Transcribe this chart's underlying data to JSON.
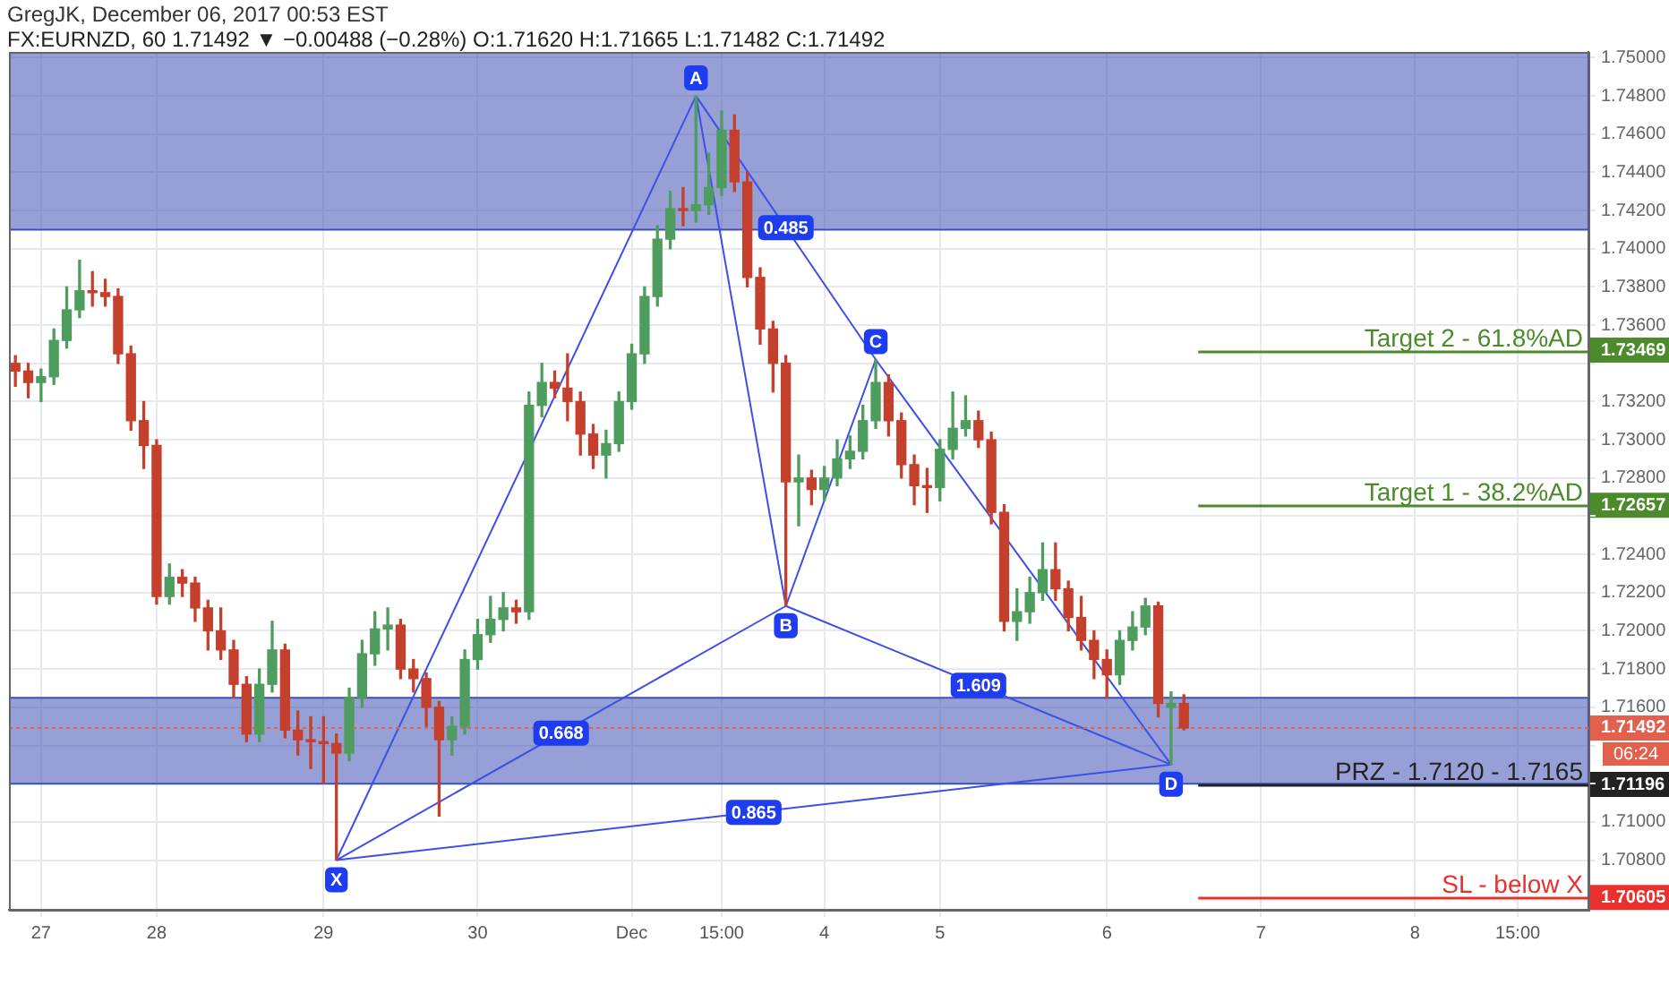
{
  "chart_data": {
    "type": "candlestick",
    "title": "FX:EURNZD, 60 1.71492 ▼ −0.00488 (−0.28%) O:1.71620 H:1.71665 L:1.71482 C:1.71492",
    "subtitle": "GregJK, December 06, 2017 00:53 EST",
    "categories": [
      null,
      null,
      "27",
      null,
      null,
      null,
      null,
      null,
      null,
      null,
      null,
      "28",
      null,
      null,
      null,
      null,
      null,
      null,
      null,
      null,
      null,
      null,
      null,
      null,
      "29",
      null,
      null,
      null,
      null,
      null,
      null,
      null,
      null,
      null,
      null,
      null,
      "30",
      null,
      null,
      null,
      null,
      null,
      null,
      null,
      null,
      null,
      null,
      null,
      "Dec",
      null,
      null,
      null,
      null,
      null,
      null,
      "15:00",
      null,
      null,
      null,
      null,
      null,
      null,
      null,
      "4",
      null,
      null,
      null,
      null,
      null,
      null,
      null,
      null,
      "5",
      null,
      null,
      null,
      null,
      null,
      null,
      null,
      null,
      null,
      null,
      null,
      null,
      "6",
      null,
      null,
      null,
      null,
      null,
      null,
      null,
      null,
      null,
      null,
      null,
      "7",
      null,
      null,
      null,
      null,
      null,
      null,
      null,
      null,
      null,
      null,
      null,
      "8",
      null,
      null,
      null,
      null,
      null,
      null,
      null,
      "15:00",
      null,
      null,
      null,
      null,
      null
    ],
    "ohlc": [
      [
        1.734,
        1.7344,
        1.7328,
        1.7336
      ],
      [
        1.7336,
        1.734,
        1.7322,
        1.733
      ],
      [
        1.733,
        1.7337,
        1.732,
        1.7333
      ],
      [
        1.7333,
        1.7358,
        1.7329,
        1.7352
      ],
      [
        1.7352,
        1.738,
        1.7348,
        1.7368
      ],
      [
        1.7368,
        1.7394,
        1.7364,
        1.7378
      ],
      [
        1.7378,
        1.7388,
        1.737,
        1.7377
      ],
      [
        1.7377,
        1.7384,
        1.737,
        1.7375
      ],
      [
        1.7375,
        1.7379,
        1.734,
        1.7345
      ],
      [
        1.7345,
        1.7349,
        1.7305,
        1.731
      ],
      [
        1.731,
        1.732,
        1.7285,
        1.7297
      ],
      [
        1.7297,
        1.73,
        1.7214,
        1.7218
      ],
      [
        1.7218,
        1.7235,
        1.7214,
        1.7228
      ],
      [
        1.7228,
        1.7232,
        1.7218,
        1.7225
      ],
      [
        1.7225,
        1.7228,
        1.7205,
        1.7212
      ],
      [
        1.7212,
        1.7216,
        1.719,
        1.72
      ],
      [
        1.72,
        1.7212,
        1.7185,
        1.719
      ],
      [
        1.719,
        1.7195,
        1.7165,
        1.7172
      ],
      [
        1.7172,
        1.7176,
        1.7142,
        1.7146
      ],
      [
        1.7146,
        1.718,
        1.7142,
        1.7172
      ],
      [
        1.7172,
        1.7205,
        1.7168,
        1.719
      ],
      [
        1.719,
        1.7193,
        1.7144,
        1.7148
      ],
      [
        1.7148,
        1.7158,
        1.7135,
        1.7143
      ],
      [
        1.7143,
        1.7155,
        1.7128,
        1.7142
      ],
      [
        1.7142,
        1.7155,
        1.712,
        1.7141
      ],
      [
        1.7141,
        1.7146,
        1.708,
        1.7136
      ],
      [
        1.7136,
        1.717,
        1.7132,
        1.7165
      ],
      [
        1.7165,
        1.7195,
        1.716,
        1.7188
      ],
      [
        1.7188,
        1.721,
        1.7182,
        1.7201
      ],
      [
        1.7201,
        1.7212,
        1.719,
        1.7203
      ],
      [
        1.7203,
        1.7206,
        1.7175,
        1.718
      ],
      [
        1.718,
        1.7185,
        1.7168,
        1.7175
      ],
      [
        1.7175,
        1.7178,
        1.715,
        1.716
      ],
      [
        1.716,
        1.7163,
        1.7103,
        1.7143
      ],
      [
        1.7143,
        1.7155,
        1.7135,
        1.715
      ],
      [
        1.715,
        1.719,
        1.7146,
        1.7185
      ],
      [
        1.7185,
        1.7206,
        1.718,
        1.7198
      ],
      [
        1.7198,
        1.7218,
        1.7194,
        1.7206
      ],
      [
        1.7206,
        1.722,
        1.72,
        1.7212
      ],
      [
        1.7212,
        1.7216,
        1.7204,
        1.721
      ],
      [
        1.721,
        1.7325,
        1.7206,
        1.7318
      ],
      [
        1.7318,
        1.734,
        1.7312,
        1.733
      ],
      [
        1.733,
        1.7336,
        1.7322,
        1.7327
      ],
      [
        1.7327,
        1.7345,
        1.731,
        1.732
      ],
      [
        1.732,
        1.7325,
        1.7292,
        1.7303
      ],
      [
        1.7303,
        1.7308,
        1.7285,
        1.7292
      ],
      [
        1.7292,
        1.7305,
        1.728,
        1.7298
      ],
      [
        1.7298,
        1.7325,
        1.7294,
        1.732
      ],
      [
        1.732,
        1.735,
        1.7316,
        1.7345
      ],
      [
        1.7345,
        1.738,
        1.734,
        1.7375
      ],
      [
        1.7375,
        1.7412,
        1.737,
        1.7405
      ],
      [
        1.7405,
        1.743,
        1.74,
        1.7421
      ],
      [
        1.7421,
        1.7432,
        1.7412,
        1.742
      ],
      [
        1.742,
        1.748,
        1.7414,
        1.7423
      ],
      [
        1.7423,
        1.745,
        1.7418,
        1.7432
      ],
      [
        1.7432,
        1.7472,
        1.7428,
        1.7462
      ],
      [
        1.7462,
        1.747,
        1.743,
        1.7435
      ],
      [
        1.7435,
        1.744,
        1.738,
        1.7385
      ],
      [
        1.7385,
        1.739,
        1.735,
        1.7358
      ],
      [
        1.7358,
        1.7362,
        1.7325,
        1.734
      ],
      [
        1.734,
        1.7344,
        1.7213,
        1.7278
      ],
      [
        1.7278,
        1.7292,
        1.7255,
        1.728
      ],
      [
        1.728,
        1.7284,
        1.7266,
        1.7274
      ],
      [
        1.7274,
        1.7286,
        1.7268,
        1.728
      ],
      [
        1.728,
        1.73,
        1.7276,
        1.729
      ],
      [
        1.729,
        1.7302,
        1.7285,
        1.7294
      ],
      [
        1.7294,
        1.7318,
        1.729,
        1.731
      ],
      [
        1.731,
        1.7342,
        1.7306,
        1.733
      ],
      [
        1.733,
        1.7334,
        1.7302,
        1.731
      ],
      [
        1.731,
        1.7314,
        1.728,
        1.7287
      ],
      [
        1.7287,
        1.7292,
        1.7266,
        1.7276
      ],
      [
        1.7276,
        1.7285,
        1.7262,
        1.7275
      ],
      [
        1.7275,
        1.73,
        1.7268,
        1.7295
      ],
      [
        1.7295,
        1.7325,
        1.729,
        1.7306
      ],
      [
        1.7306,
        1.7323,
        1.7302,
        1.731
      ],
      [
        1.731,
        1.7315,
        1.7296,
        1.73
      ],
      [
        1.73,
        1.7304,
        1.7256,
        1.7262
      ],
      [
        1.7262,
        1.7266,
        1.72,
        1.7205
      ],
      [
        1.7205,
        1.7222,
        1.7195,
        1.721
      ],
      [
        1.721,
        1.7228,
        1.7204,
        1.722
      ],
      [
        1.722,
        1.7246,
        1.7216,
        1.7232
      ],
      [
        1.7232,
        1.7246,
        1.7216,
        1.7222
      ],
      [
        1.7222,
        1.7226,
        1.72,
        1.7207
      ],
      [
        1.7207,
        1.7218,
        1.719,
        1.7195
      ],
      [
        1.7195,
        1.72,
        1.7175,
        1.7185
      ],
      [
        1.7185,
        1.719,
        1.7165,
        1.7177
      ],
      [
        1.7177,
        1.72,
        1.7172,
        1.7195
      ],
      [
        1.7195,
        1.721,
        1.719,
        1.7202
      ],
      [
        1.7202,
        1.7217,
        1.7198,
        1.7213
      ],
      [
        1.7213,
        1.7215,
        1.7155,
        1.7162
      ],
      [
        1.716,
        1.7168,
        1.713,
        1.7162
      ],
      [
        1.7162,
        1.71665,
        1.71482,
        1.71492
      ],
      null,
      null,
      null,
      null,
      null,
      null,
      null,
      null,
      null,
      null,
      null,
      null,
      null,
      null,
      null,
      null,
      null,
      null,
      null,
      null,
      null,
      null,
      null,
      null,
      null,
      null,
      null,
      null,
      null,
      null,
      null
    ],
    "colors": [
      "#c4402d",
      "#c4402d",
      "#4e9d5e",
      "#4e9d5e",
      "#4e9d5e",
      "#4e9d5e",
      "#c4402d",
      "#c4402d",
      "#c4402d",
      "#c4402d",
      "#c4402d",
      "#c4402d",
      "#4e9d5e",
      "#c4402d",
      "#c4402d",
      "#c4402d",
      "#c4402d",
      "#c4402d",
      "#c4402d",
      "#4e9d5e",
      "#4e9d5e",
      "#c4402d",
      "#c4402d",
      "#c4402d",
      "#c4402d",
      "#c4402d",
      "#4e9d5e",
      "#4e9d5e",
      "#4e9d5e",
      "#4e9d5e",
      "#c4402d",
      "#c4402d",
      "#c4402d",
      "#c4402d",
      "#4e9d5e",
      "#4e9d5e",
      "#4e9d5e",
      "#4e9d5e",
      "#4e9d5e",
      "#c4402d",
      "#4e9d5e",
      "#4e9d5e",
      "#c4402d",
      "#c4402d",
      "#c4402d",
      "#c4402d",
      "#4e9d5e",
      "#4e9d5e",
      "#4e9d5e",
      "#4e9d5e",
      "#4e9d5e",
      "#4e9d5e",
      "#c4402d",
      "#4e9d5e",
      "#4e9d5e",
      "#4e9d5e",
      "#c4402d",
      "#c4402d",
      "#c4402d",
      "#c4402d",
      "#c4402d",
      "#4e9d5e",
      "#c4402d",
      "#4e9d5e",
      "#4e9d5e",
      "#4e9d5e",
      "#4e9d5e",
      "#4e9d5e",
      "#c4402d",
      "#c4402d",
      "#c4402d",
      "#c4402d",
      "#4e9d5e",
      "#4e9d5e",
      "#4e9d5e",
      "#c4402d",
      "#c4402d",
      "#c4402d",
      "#4e9d5e",
      "#4e9d5e",
      "#4e9d5e",
      "#c4402d",
      "#c4402d",
      "#c4402d",
      "#c4402d",
      "#c4402d",
      "#4e9d5e",
      "#4e9d5e",
      "#4e9d5e",
      "#c4402d",
      "#4e9d5e",
      "#c4402d",
      null,
      null,
      null,
      null,
      null,
      null,
      null,
      null,
      null,
      null,
      null,
      null,
      null,
      null,
      null,
      null,
      null,
      null,
      null,
      null,
      null,
      null,
      null,
      null,
      null,
      null,
      null,
      null,
      null,
      null,
      null
    ],
    "ylim": [
      1.7054,
      1.7503
    ],
    "yticks": [
      {
        "value": 1.70605,
        "label": "1.70605"
      },
      {
        "value": 1.708,
        "label": "1.70800"
      },
      {
        "value": 1.71,
        "label": "1.71000"
      },
      {
        "value": 1.71196,
        "label": "1.71196"
      },
      {
        "value": 1.712,
        "label": null
      },
      {
        "value": 1.714,
        "label": null
      },
      {
        "value": 1.71492,
        "label": "1.71492"
      },
      {
        "value": 1.716,
        "label": "1.71600"
      },
      {
        "value": 1.718,
        "label": "1.71800"
      },
      {
        "value": 1.72,
        "label": "1.72000"
      },
      {
        "value": 1.722,
        "label": "1.72200"
      },
      {
        "value": 1.724,
        "label": "1.72400"
      },
      {
        "value": 1.726,
        "label": null
      },
      {
        "value": 1.72657,
        "label": "1.72657"
      },
      {
        "value": 1.728,
        "label": "1.72800"
      },
      {
        "value": 1.73,
        "label": "1.73000"
      },
      {
        "value": 1.732,
        "label": "1.73200"
      },
      {
        "value": 1.734,
        "label": null
      },
      {
        "value": 1.73469,
        "label": "1.73469"
      },
      {
        "value": 1.736,
        "label": "1.73600"
      },
      {
        "value": 1.738,
        "label": "1.73800"
      },
      {
        "value": 1.74,
        "label": "1.74000"
      },
      {
        "value": 1.742,
        "label": "1.74200"
      },
      {
        "value": 1.744,
        "label": "1.74400"
      },
      {
        "value": 1.746,
        "label": "1.74600"
      },
      {
        "value": 1.748,
        "label": "1.74800"
      },
      {
        "value": 1.75,
        "label": "1.75000"
      }
    ],
    "grid": true,
    "bands": [
      {
        "axis": "y",
        "from": 1.741,
        "to": 1.7503,
        "color": "#3f51b5"
      },
      {
        "axis": "y",
        "from": 1.712,
        "to": 1.7165,
        "color": "#3f51b5"
      }
    ],
    "ref_lines": [
      {
        "axis": "y",
        "value": 1.73469,
        "label": "Target 2 - 61.8%AD",
        "color": "#4b8b2b"
      },
      {
        "axis": "y",
        "value": 1.72657,
        "label": "Target 1 - 38.2%AD",
        "color": "#4b8b2b"
      },
      {
        "axis": "y",
        "value": 1.71492,
        "color": "#e2604c",
        "line_style": "dotted"
      },
      {
        "axis": "y",
        "value": 1.71196,
        "label": "PRZ - 1.7120 - 1.7165",
        "color": "#222222"
      },
      {
        "axis": "y",
        "value": 1.70605,
        "label": "SL - below X",
        "color": "#e8302c"
      }
    ],
    "annotations": [
      {
        "text": "X",
        "y": 1.708
      },
      {
        "text": "A",
        "y": 1.748
      },
      {
        "text": "B",
        "y": 1.7213
      },
      {
        "text": "C",
        "y": 1.7342
      },
      {
        "text": "D",
        "y": 1.713
      },
      "0.485",
      "0.668",
      "1.609",
      "0.865",
      "06:24"
    ],
    "legend": false
  }
}
